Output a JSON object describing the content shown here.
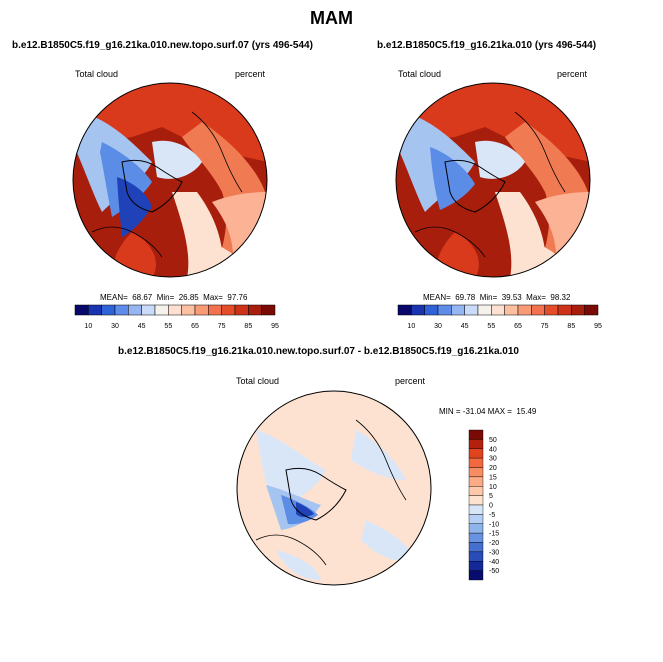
{
  "figure": {
    "title": "MAM"
  },
  "panels": [
    {
      "id": "a",
      "subtitle": "b.e12.B1850C5.f19_g16.21ka.010.new.topo.surf.07 (yrs 496-544)",
      "left_label": "Total cloud",
      "right_label": "percent",
      "stats": {
        "mean": "68.67",
        "min": "26.85",
        "max": "97.76"
      },
      "stats_text": "MEAN=  68.67  Min=  26.85  Max=  97.76"
    },
    {
      "id": "b",
      "subtitle": "b.e12.B1850C5.f19_g16.21ka.010 (yrs 496-544)",
      "left_label": "Total cloud",
      "right_label": "percent",
      "stats": {
        "mean": "69.78",
        "min": "39.53",
        "max": "98.32"
      },
      "stats_text": "MEAN=  69.78  Min=  39.53  Max=  98.32"
    },
    {
      "id": "diff",
      "subtitle": "b.e12.B1850C5.f19_g16.21ka.010.new.topo.surf.07 - b.e12.B1850C5.f19_g16.21ka.010",
      "left_label": "Total cloud",
      "right_label": "percent",
      "stats": {
        "min": "-31.04",
        "max": "15.49"
      },
      "stats_text": "MIN = -31.04 MAX =  15.49"
    }
  ],
  "colorbars": {
    "absolute": {
      "labels": [
        "10",
        "30",
        "45",
        "55",
        "65",
        "75",
        "85",
        "95"
      ],
      "colors": [
        "#08086b",
        "#1a33b0",
        "#2f62d6",
        "#5e8ce8",
        "#96b6f2",
        "#c9dbf8",
        "#f4f2ea",
        "#fde0cf",
        "#fcbfa2",
        "#f99a77",
        "#f27250",
        "#e44d2a",
        "#cc3318",
        "#a81e0d",
        "#7a0a05"
      ]
    },
    "difference": {
      "labels": [
        "50",
        "40",
        "30",
        "20",
        "15",
        "10",
        "5",
        "0",
        "-5",
        "-10",
        "-15",
        "-20",
        "-30",
        "-40",
        "-50"
      ],
      "colors": [
        "#7a0a05",
        "#b3200e",
        "#e0441f",
        "#f4683f",
        "#f88c62",
        "#fbac87",
        "#fdc9aa",
        "#fde3cf",
        "#d6e6f8",
        "#b5d0f4",
        "#8fb4ec",
        "#6992e0",
        "#4670d0",
        "#2a4cb8",
        "#15289a",
        "#080c6e"
      ]
    }
  },
  "map_colors": {
    "deep_red": "#a81e0d",
    "red": "#d93a1c",
    "orange": "#f07a52",
    "light_orange": "#fbb295",
    "peach": "#fde2d2",
    "pale_blue": "#d8e6f8",
    "light_blue": "#a6c4f0",
    "blue": "#5b8ce6",
    "dark_blue": "#1f42b8"
  }
}
